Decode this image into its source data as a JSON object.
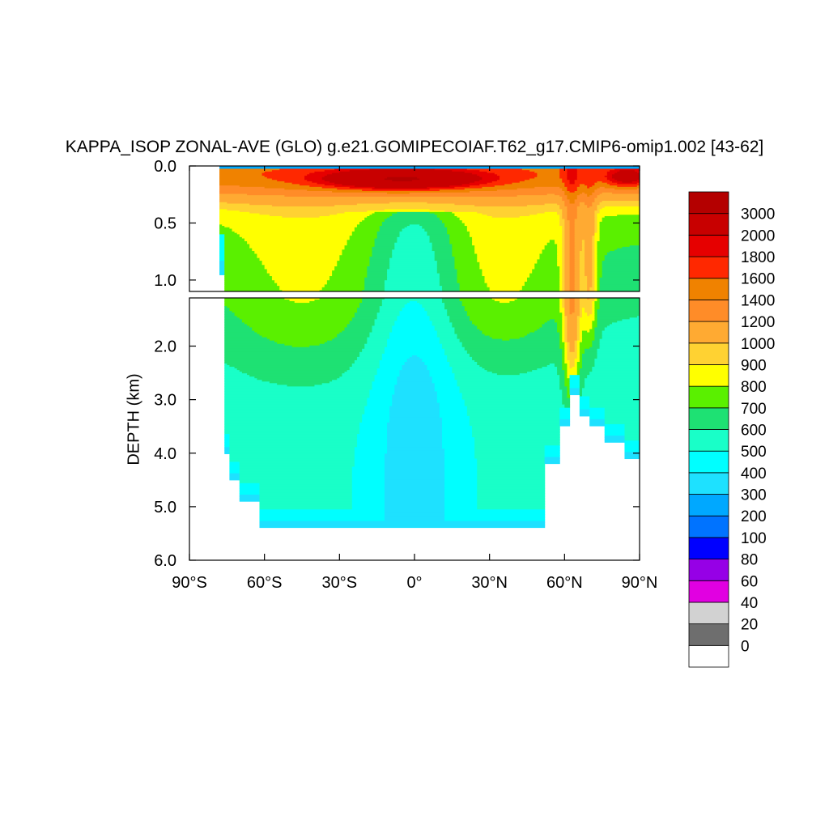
{
  "chart_data": {
    "type": "heatmap",
    "title": "KAPPA_ISOP ZONAL-AVE (GLO) g.e21.GOMIPECOIAF.T62_g17.CMIP6-omip1.002 [43-62]",
    "ylabel": "DEPTH (km)",
    "xlabel": "",
    "x_ticks": [
      "90°S",
      "60°S",
      "30°S",
      "0°",
      "30°N",
      "60°N",
      "90°N"
    ],
    "x_tick_values": [
      -90,
      -60,
      -30,
      0,
      30,
      60,
      90
    ],
    "y_ticks_upper": [
      "0.0",
      "0.5",
      "1.0"
    ],
    "y_tick_values_upper": [
      0.0,
      0.5,
      1.0
    ],
    "y_ticks_lower": [
      "2.0",
      "3.0",
      "4.0",
      "5.0",
      "6.0"
    ],
    "y_tick_values_lower": [
      2.0,
      3.0,
      4.0,
      5.0,
      6.0
    ],
    "xlim": [
      -90,
      90
    ],
    "ylim_upper": [
      0.0,
      1.1
    ],
    "ylim_lower": [
      1.1,
      6.0
    ],
    "colorbar": {
      "levels": [
        "0",
        "20",
        "40",
        "60",
        "80",
        "100",
        "200",
        "300",
        "400",
        "500",
        "600",
        "700",
        "800",
        "900",
        "1000",
        "1200",
        "1400",
        "1600",
        "1800",
        "2000",
        "3000"
      ],
      "colors": [
        "#ffffff",
        "#6e6e6e",
        "#d2d2d2",
        "#e100e1",
        "#9600e6",
        "#0000ff",
        "#0073ff",
        "#00a8ff",
        "#1ee1ff",
        "#00ffff",
        "#19ffc8",
        "#1ee173",
        "#5af000",
        "#ffff00",
        "#ffd232",
        "#ffaa32",
        "#ff8c28",
        "#f08200",
        "#ff2800",
        "#e60000",
        "#c80000",
        "#b40000"
      ]
    },
    "field": {
      "lat": [
        -90,
        -80,
        -78,
        -76,
        -74,
        -72,
        -70,
        -65,
        -60,
        -55,
        -50,
        -45,
        -40,
        -35,
        -30,
        -25,
        -20,
        -15,
        -10,
        -5,
        0,
        5,
        10,
        15,
        20,
        25,
        30,
        35,
        40,
        45,
        50,
        53,
        55,
        58,
        60,
        62,
        64,
        66,
        68,
        70,
        72,
        74,
        76,
        78,
        80,
        82,
        84,
        86,
        88,
        90
      ],
      "depth": [
        0.0,
        0.01,
        0.05,
        0.1,
        0.15,
        0.2,
        0.25,
        0.3,
        0.4,
        0.5,
        0.6,
        0.7,
        0.8,
        0.9,
        1.0,
        1.1,
        1.5,
        2.0,
        2.5,
        3.0,
        3.5,
        4.0,
        4.5,
        5.0,
        5.3,
        5.5,
        6.0
      ]
    }
  }
}
